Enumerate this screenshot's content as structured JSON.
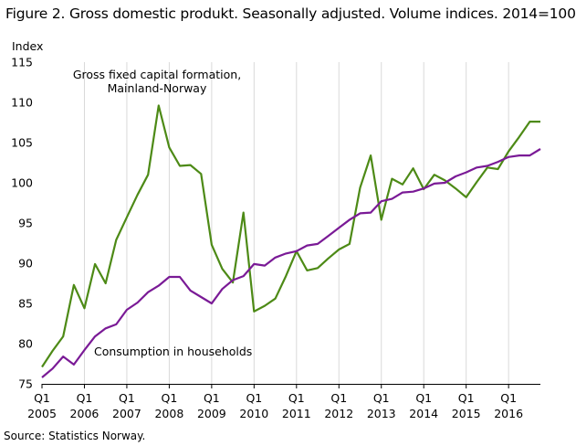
{
  "title": "Figure 2. Gross domestic produkt. Seasonally adjusted. Volume indices. 2014=100",
  "source": "Source: Statistics Norway.",
  "chart_data": {
    "type": "line",
    "ylabel": "Index",
    "ylim": [
      75,
      115
    ],
    "yticks": [
      75,
      80,
      85,
      90,
      95,
      100,
      105,
      110,
      115
    ],
    "x_range": [
      "2005Q1",
      "2016Q4"
    ],
    "xtick_quarter": "Q1",
    "xtick_years": [
      "2005",
      "2006",
      "2007",
      "2008",
      "2009",
      "2010",
      "2011",
      "2012",
      "2013",
      "2014",
      "2015",
      "2016"
    ],
    "grid": "vertical",
    "x": [
      "2005Q1",
      "2005Q2",
      "2005Q3",
      "2005Q4",
      "2006Q1",
      "2006Q2",
      "2006Q3",
      "2006Q4",
      "2007Q1",
      "2007Q2",
      "2007Q3",
      "2007Q4",
      "2008Q1",
      "2008Q2",
      "2008Q3",
      "2008Q4",
      "2009Q1",
      "2009Q2",
      "2009Q3",
      "2009Q4",
      "2010Q1",
      "2010Q2",
      "2010Q3",
      "2010Q4",
      "2011Q1",
      "2011Q2",
      "2011Q3",
      "2011Q4",
      "2012Q1",
      "2012Q2",
      "2012Q3",
      "2012Q4",
      "2013Q1",
      "2013Q2",
      "2013Q3",
      "2013Q4",
      "2014Q1",
      "2014Q2",
      "2014Q3",
      "2014Q4",
      "2015Q1",
      "2015Q2",
      "2015Q3",
      "2015Q4",
      "2016Q1",
      "2016Q2",
      "2016Q3",
      "2016Q4"
    ],
    "series": [
      {
        "name": "Gross fixed capital formation, Mainland-Norway",
        "label_lines": [
          "Gross fixed capital formation,",
          "Mainland-Norway"
        ],
        "color": "#4d8a16",
        "values": [
          77.1,
          79.1,
          80.9,
          87.3,
          84.4,
          89.9,
          87.5,
          92.9,
          95.7,
          98.5,
          101.0,
          109.6,
          104.4,
          102.1,
          102.2,
          101.1,
          92.3,
          89.3,
          87.6,
          96.3,
          84.0,
          84.7,
          85.6,
          88.4,
          91.5,
          89.1,
          89.4,
          90.6,
          91.7,
          92.4,
          99.4,
          103.4,
          95.4,
          100.5,
          99.8,
          101.8,
          99.2,
          101.0,
          100.3,
          99.3,
          98.2,
          100.1,
          101.9,
          101.7,
          103.9,
          105.7,
          107.6,
          107.6
        ]
      },
      {
        "name": "Consumption in households",
        "label_lines": [
          "Consumption in households"
        ],
        "color": "#7a1a96",
        "values": [
          75.8,
          76.9,
          78.4,
          77.4,
          79.2,
          80.9,
          81.9,
          82.4,
          84.2,
          85.1,
          86.4,
          87.2,
          88.3,
          88.3,
          86.6,
          85.8,
          85.0,
          86.8,
          87.9,
          88.4,
          89.9,
          89.7,
          90.7,
          91.2,
          91.5,
          92.2,
          92.4,
          93.4,
          94.4,
          95.4,
          96.2,
          96.3,
          97.7,
          98.0,
          98.8,
          98.9,
          99.3,
          99.9,
          100.0,
          100.8,
          101.3,
          101.9,
          102.1,
          102.6,
          103.2,
          103.4,
          103.4,
          104.2
        ]
      }
    ]
  }
}
